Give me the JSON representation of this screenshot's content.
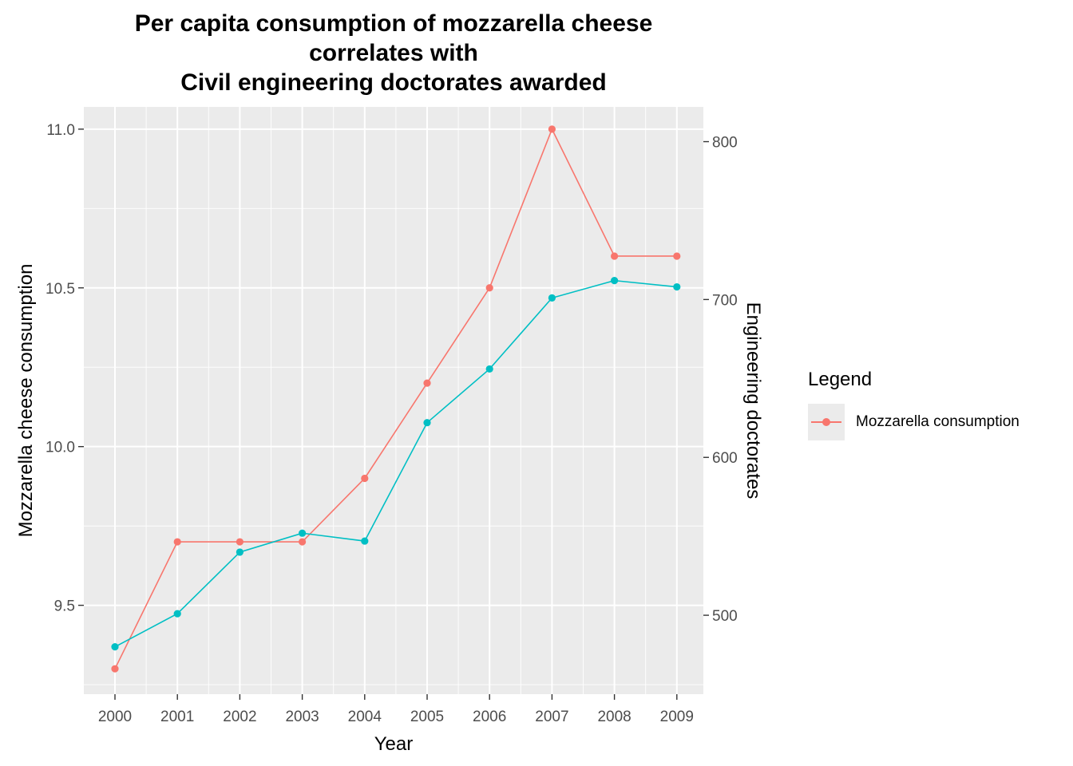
{
  "title_lines": [
    "Per capita consumption of mozzarella cheese",
    "correlates with",
    "Civil engineering doctorates awarded"
  ],
  "legend": {
    "title": "Legend",
    "items": [
      "Mozzarella consumption"
    ]
  },
  "colors": {
    "mozzarella": "#F8766D",
    "doctorates": "#00BFC4",
    "panel_bg": "#EBEBEB",
    "grid": "#FFFFFF"
  },
  "chart_data": {
    "type": "line",
    "title": "Per capita consumption of mozzarella cheese correlates with Civil engineering doctorates awarded",
    "xlabel": "Year",
    "ylabel": "Mozzarella cheese consumption",
    "y2label": "Engineering doctorates",
    "x": [
      "2000",
      "2001",
      "2002",
      "2003",
      "2004",
      "2005",
      "2006",
      "2007",
      "2008",
      "2009"
    ],
    "ylim": [
      9.22,
      11.07
    ],
    "y2lim": [
      450,
      822
    ],
    "yticks": [
      "9.5",
      "10.0",
      "10.5",
      "11.0"
    ],
    "y2ticks": [
      "500",
      "600",
      "700",
      "800"
    ],
    "grid": true,
    "legend_position": "right",
    "series": [
      {
        "name": "Mozzarella consumption",
        "axis": "left",
        "values": [
          9.3,
          9.7,
          9.7,
          9.7,
          9.9,
          10.2,
          10.5,
          11.0,
          10.6,
          10.6
        ]
      },
      {
        "axis": "right",
        "values": [
          480,
          501,
          540,
          552,
          547,
          622,
          656,
          701,
          712,
          708
        ]
      }
    ]
  }
}
